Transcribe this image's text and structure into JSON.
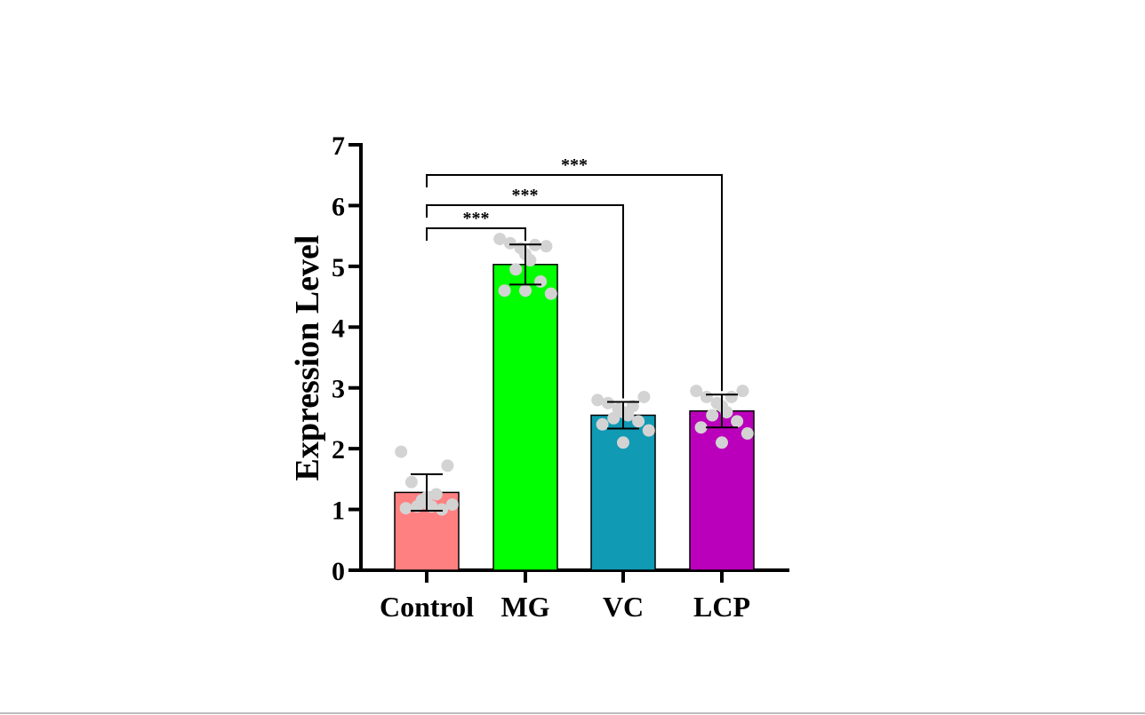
{
  "chart_data": {
    "type": "bar",
    "ylabel": "Expression Level",
    "ylim": [
      0,
      7
    ],
    "yticks": [
      "0",
      "1",
      "2",
      "3",
      "4",
      "5",
      "6",
      "7"
    ],
    "categories": [
      "Control",
      "MG",
      "VC",
      "LCP"
    ],
    "series": [
      {
        "values": [
          1.28,
          5.03,
          2.55,
          2.62
        ],
        "error": [
          0.3,
          0.33,
          0.22,
          0.27
        ],
        "colors": [
          "#ff8080",
          "#00ff00",
          "#109ab4",
          "#bb00bb"
        ],
        "points": [
          [
            1.95,
            1.72,
            1.45,
            1.25,
            1.15,
            1.1,
            1.05,
            1.05,
            1.0,
            1.02,
            1.08,
            1.2
          ],
          [
            5.45,
            5.33,
            5.38,
            5.35,
            5.3,
            5.2,
            5.1,
            4.95,
            4.75,
            4.6,
            4.55,
            4.6
          ],
          [
            2.8,
            2.85,
            2.75,
            2.7,
            2.65,
            2.6,
            2.55,
            2.5,
            2.45,
            2.4,
            2.3,
            2.1
          ],
          [
            2.95,
            2.95,
            2.85,
            2.85,
            2.75,
            2.7,
            2.6,
            2.55,
            2.45,
            2.35,
            2.25,
            2.1
          ]
        ]
      }
    ],
    "significance": [
      {
        "from": "Control",
        "to": "MG",
        "label": "***"
      },
      {
        "from": "Control",
        "to": "VC",
        "label": "***"
      },
      {
        "from": "Control",
        "to": "LCP",
        "label": "***"
      }
    ],
    "point_color": "#d3d3d3",
    "grid": false
  }
}
